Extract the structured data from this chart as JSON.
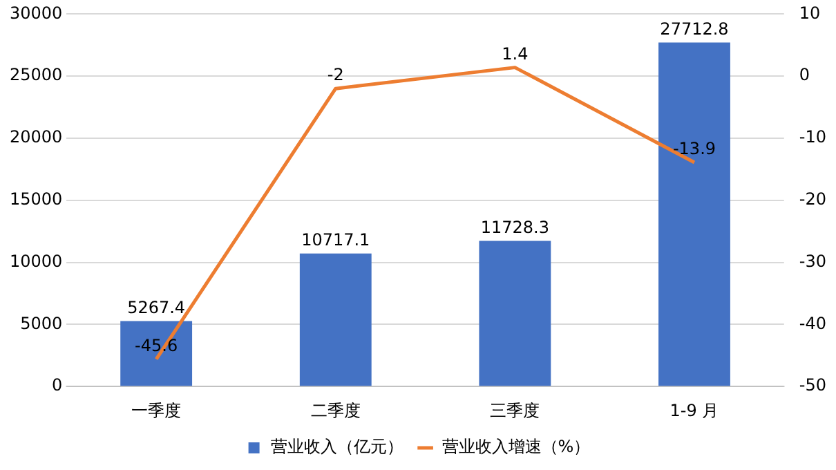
{
  "chart_data": {
    "type": "bar",
    "categories": [
      "一季度",
      "二季度",
      "三季度",
      "1-9 月"
    ],
    "series": [
      {
        "name": "营业收入（亿元）",
        "color": "#4472c4",
        "values": [
          5267.4,
          10717.1,
          11728.3,
          27712.8
        ]
      },
      {
        "name": "营业收入增速（%）",
        "type": "line",
        "axis": "y2",
        "color": "#ed7d31",
        "values": [
          -45.6,
          -2,
          1.4,
          -13.9
        ]
      }
    ],
    "ylim": [
      0,
      30000
    ],
    "yticks": [
      0,
      5000,
      10000,
      15000,
      20000,
      25000,
      30000
    ],
    "y2lim": [
      -50,
      10
    ],
    "y2ticks": [
      -50,
      -40,
      -30,
      -20,
      -10,
      0,
      10
    ],
    "grid": "y",
    "legend": "bottom",
    "data_labels": true
  }
}
